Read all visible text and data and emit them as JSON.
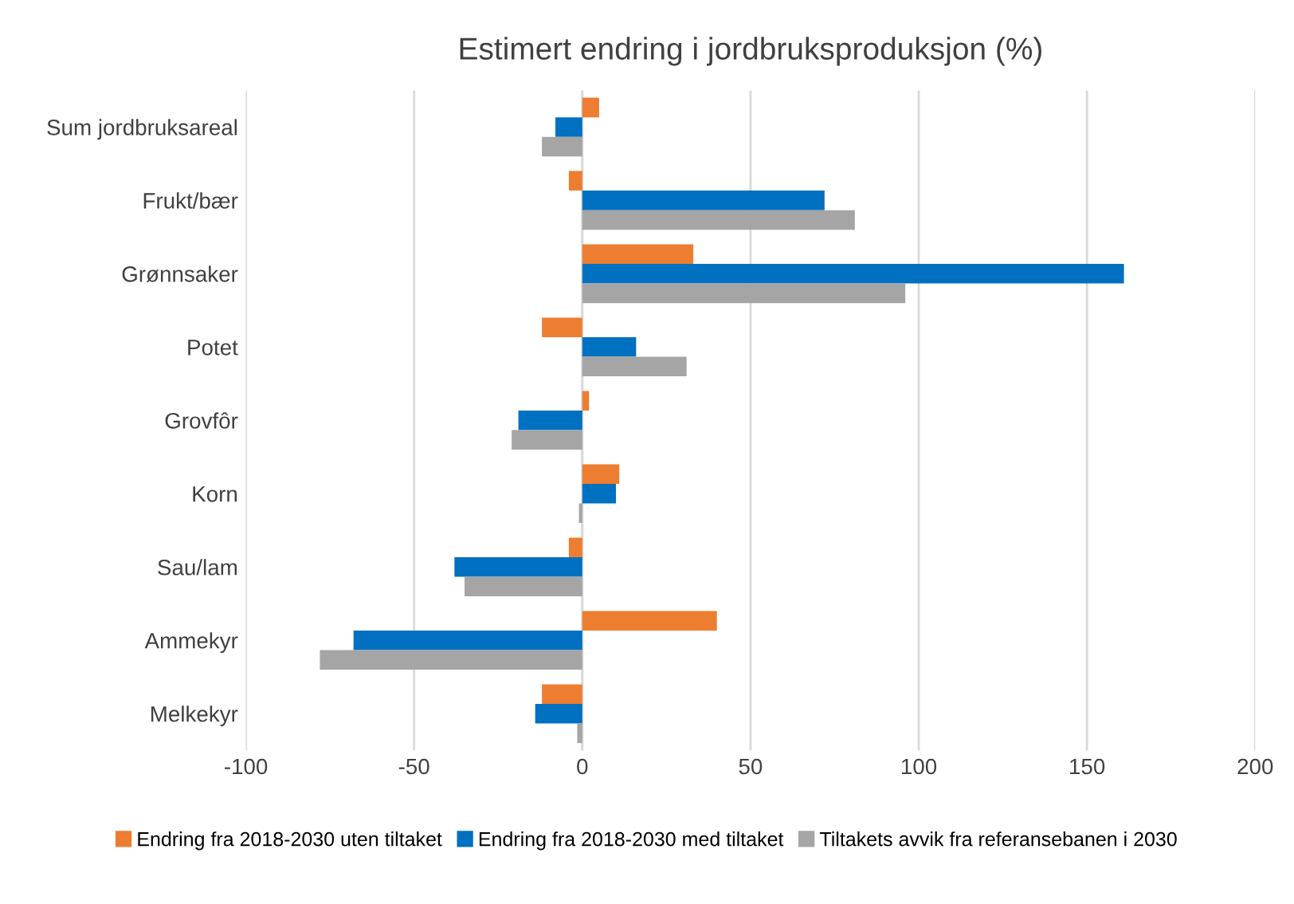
{
  "chart_data": {
    "type": "bar",
    "orientation": "horizontal",
    "title": "Estimert endring i jordbruksproduksjon (%)",
    "categories": [
      "Sum jordbruksareal",
      "Frukt/bær",
      "Grønnsaker",
      "Potet",
      "Grovfôr",
      "Korn",
      "Sau/lam",
      "Ammekyr",
      "Melkekyr"
    ],
    "series": [
      {
        "name": "Endring fra 2018-2030 uten tiltaket",
        "color": "#ed7d31",
        "values": [
          5,
          -4,
          33,
          -12,
          2,
          11,
          -4,
          40,
          -12
        ]
      },
      {
        "name": "Endring fra 2018-2030 med tiltaket",
        "color": "#0070c0",
        "values": [
          -8,
          72,
          161,
          16,
          -19,
          10,
          -38,
          -68,
          -14
        ]
      },
      {
        "name": "Tiltakets avvik fra referansebanen i 2030",
        "color": "#a5a5a5",
        "values": [
          -12,
          81,
          96,
          31,
          -21,
          -1,
          -35,
          -78,
          -1.5
        ]
      }
    ],
    "xlim": [
      -100,
      200
    ],
    "xticks": [
      -100,
      -50,
      0,
      50,
      100,
      150,
      200
    ],
    "grid": "x",
    "legend": "bottom"
  }
}
